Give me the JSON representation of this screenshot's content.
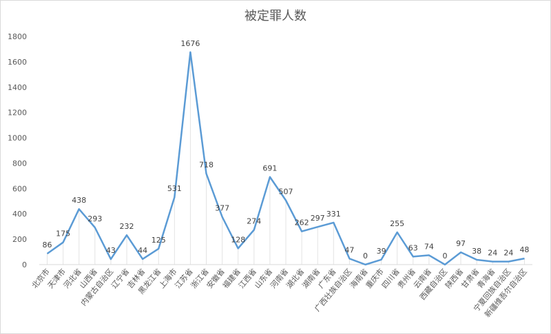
{
  "chart_data": {
    "type": "line",
    "title": "被定罪人数",
    "xlabel": "",
    "ylabel": "",
    "ylim": [
      0,
      1800
    ],
    "yticks": [
      0,
      200,
      400,
      600,
      800,
      1000,
      1200,
      1400,
      1600,
      1800
    ],
    "grid": {
      "horizontal": false,
      "vertical_drop_lines": true
    },
    "legend": "none",
    "line_color": "#5b9bd5",
    "categories": [
      "北京市",
      "天津市",
      "河北省",
      "山西省",
      "内蒙古自治区",
      "辽宁省",
      "吉林省",
      "黑龙江省",
      "上海市",
      "江苏省",
      "浙江省",
      "安徽省",
      "福建省",
      "江西省",
      "山东省",
      "河南省",
      "湖北省",
      "湖南省",
      "广东省",
      "广西壮族自治区",
      "海南省",
      "重庆市",
      "四川省",
      "贵州省",
      "云南省",
      "西藏自治区",
      "陕西省",
      "甘肃省",
      "青海省",
      "宁夏回族自治区",
      "新疆维吾尔自治区"
    ],
    "series": [
      {
        "values": [
          86,
          175,
          438,
          293,
          43,
          232,
          44,
          125,
          531,
          1676,
          718,
          377,
          128,
          274,
          691,
          507,
          262,
          297,
          331,
          47,
          0,
          39,
          255,
          63,
          74,
          0,
          97,
          38,
          24,
          24,
          48
        ]
      }
    ]
  }
}
